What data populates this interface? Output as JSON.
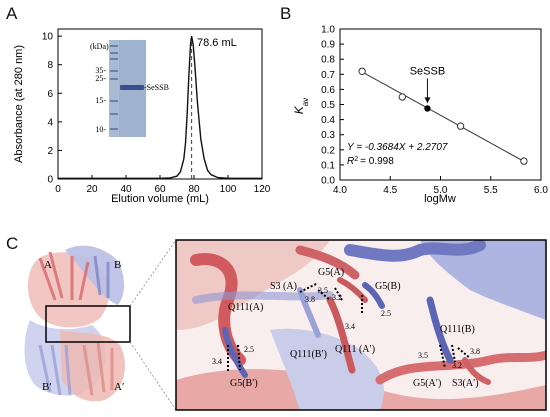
{
  "panels": {
    "a": "A",
    "b": "B",
    "c": "C"
  },
  "chart_data": [
    {
      "type": "line",
      "panel": "A",
      "title": "",
      "xlabel": "Elution volume (mL)",
      "ylabel": "Absorbance (at 280 nm)",
      "xlim": [
        0,
        120
      ],
      "ylim": [
        0,
        10.5
      ],
      "xticks": [
        0,
        20,
        40,
        60,
        80,
        100,
        120
      ],
      "yticks": [
        0,
        2,
        4,
        6,
        8,
        10
      ],
      "series": [
        {
          "x": [
            0,
            20,
            40,
            60,
            66,
            70,
            72,
            74,
            75,
            76,
            77,
            78,
            78.6,
            79.5,
            80.5,
            82,
            84,
            86,
            88,
            90,
            94,
            100,
            110,
            120
          ],
          "y": [
            0.05,
            0.05,
            0.05,
            0.05,
            0.08,
            0.2,
            0.5,
            1.4,
            2.5,
            4.6,
            7.3,
            9.5,
            10.0,
            9.4,
            8.0,
            5.4,
            2.8,
            1.4,
            0.6,
            0.3,
            0.1,
            0.05,
            0.05,
            0.05
          ]
        }
      ],
      "peak_label": "78.6 mL",
      "peak_x": 78.6,
      "inset": {
        "unit_label": "(kDa)",
        "marker_labels": [
          "35-",
          "25-",
          "15-",
          "10-"
        ],
        "band_label": "-SeSSB"
      }
    },
    {
      "type": "scatter",
      "panel": "B",
      "xlabel": "logMw",
      "ylabel": "K",
      "ylabel_sub": "av",
      "xlim": [
        4.0,
        6.0
      ],
      "ylim": [
        0.0,
        1.0
      ],
      "xticks": [
        "4.0",
        "4.5",
        "5.0",
        "5.5",
        "6.0"
      ],
      "yticks": [
        "0.0",
        "0.1",
        "0.2",
        "0.3",
        "0.4",
        "0.5",
        "0.6",
        "0.7",
        "0.8",
        "0.9",
        "1.0"
      ],
      "standards": {
        "x": [
          4.22,
          4.62,
          5.2,
          5.83
        ],
        "y": [
          0.72,
          0.55,
          0.357,
          0.125
        ]
      },
      "sample": {
        "name": "SeSSB",
        "x": 4.87,
        "y": 0.474
      },
      "fit": {
        "slope": -0.3684,
        "intercept": 2.2707,
        "x_from": 4.22,
        "x_to": 5.83
      },
      "equation": "Y = -0.3684X + 2.2707",
      "r2_label": "R",
      "r2_value": "= 0.998"
    }
  ],
  "structure": {
    "chain_labels": [
      "A",
      "B",
      "B′",
      "A′"
    ],
    "residue_labels": [
      {
        "text": "Q111(A)"
      },
      {
        "text": "S3 (A)"
      },
      {
        "text": "G5(A)"
      },
      {
        "text": "G5(B)"
      },
      {
        "text": "Q111(B′)"
      },
      {
        "text": "Q111 (A′)"
      },
      {
        "text": "Q111(B)"
      },
      {
        "text": "G5(B′)"
      },
      {
        "text": "G5(A′)"
      },
      {
        "text": "S3(A′)"
      }
    ],
    "distance_labels": [
      "3.5",
      "3.2",
      "3.8",
      "3.4",
      "2.5",
      "3.4",
      "2.5",
      "3.5",
      "3.2",
      "3.8"
    ]
  },
  "colors": {
    "chain_red": "#d7686b",
    "chain_red_light": "#e8a2a2",
    "chain_blue": "#7e86c8",
    "chain_blue_light": "#c3c9ea",
    "background_cartoon": "#f2ccc8"
  }
}
